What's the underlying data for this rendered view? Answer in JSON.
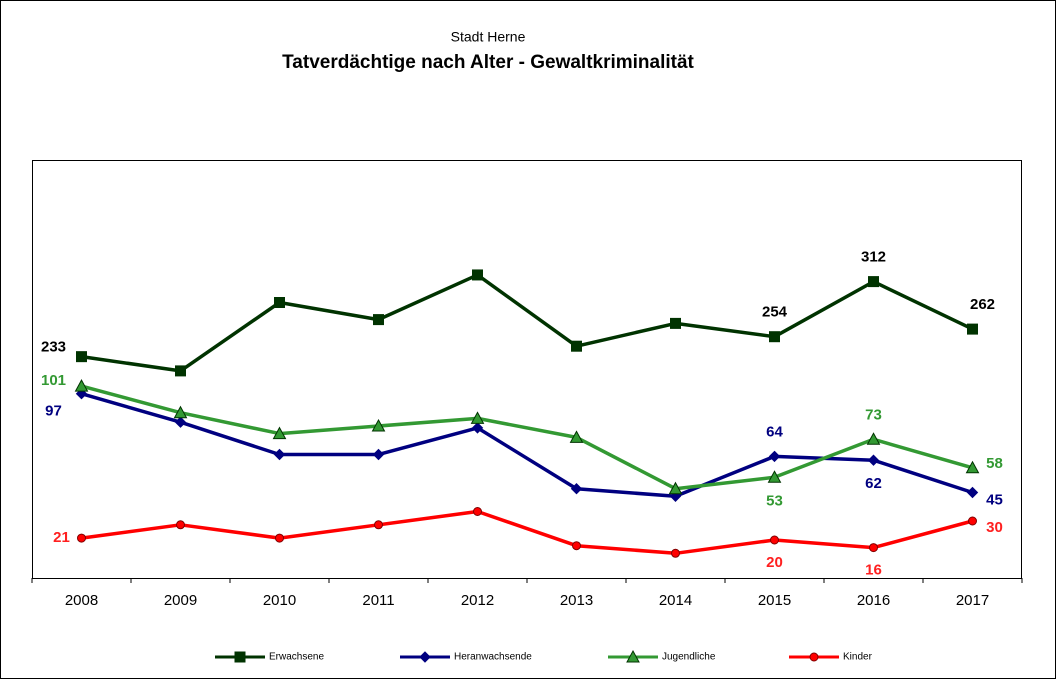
{
  "chart_data": {
    "type": "line",
    "subtitle": "Stadt Herne",
    "title": "Tatverdächtige  nach Alter  - Gewaltkriminalität",
    "categories": [
      "2008",
      "2009",
      "2010",
      "2011",
      "2012",
      "2013",
      "2014",
      "2015",
      "2016",
      "2017"
    ],
    "ylim": [
      0,
      220
    ],
    "y2lim": [
      0,
      440
    ],
    "legend": "bottom",
    "series": [
      {
        "name": "Erwachsene",
        "color": "#003300",
        "marker": "square",
        "axis": "y2",
        "label_color": "#000000",
        "values": [
          233,
          218,
          290,
          272,
          319,
          244,
          268,
          254,
          312,
          262
        ],
        "value_labels": [
          "233",
          null,
          null,
          null,
          null,
          null,
          null,
          "254",
          "312",
          "262"
        ]
      },
      {
        "name": "Heranwachsende",
        "color": "#000080",
        "marker": "diamond",
        "label_color": "#000080",
        "values": [
          97,
          82,
          65,
          65,
          79,
          47,
          43,
          64,
          62,
          45
        ],
        "value_labels": [
          "97",
          null,
          null,
          null,
          null,
          null,
          null,
          "64",
          "62",
          "45"
        ]
      },
      {
        "name": "Jugendliche",
        "color": "#339933",
        "marker": "triangle",
        "label_color": "#339933",
        "values": [
          101,
          87,
          76,
          80,
          84,
          74,
          47,
          53,
          73,
          58
        ],
        "value_labels": [
          "101",
          null,
          null,
          null,
          null,
          null,
          null,
          "53",
          "73",
          "58"
        ]
      },
      {
        "name": "Kinder",
        "color": "#ff0000",
        "marker": "circle",
        "label_color": "#ff2020",
        "values": [
          21,
          28,
          21,
          28,
          35,
          17,
          13,
          20,
          16,
          30
        ],
        "value_labels": [
          "21",
          null,
          null,
          null,
          null,
          null,
          null,
          "20",
          "16",
          "30"
        ]
      }
    ]
  }
}
